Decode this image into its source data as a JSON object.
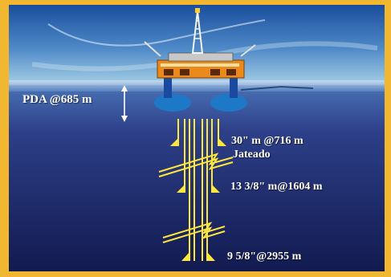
{
  "colors": {
    "frame": "#f2b731",
    "sky_top": "#1a4e9c",
    "sky_bottom": "#8fc1e0",
    "sea_top": "#3b63a9",
    "sea_bottom": "#121a50",
    "casing": "#ffe63a",
    "rig": "#e98a1b",
    "pontoon": "#1e78c8",
    "label": "#ffffff"
  },
  "labels": {
    "water_depth": "PDA @685 m",
    "casing_30": "30\" m @716 m",
    "casing_30_method": "Jateado",
    "casing_13": "13 3/8\" m@1604 m",
    "casing_9": "9 5/8\"@2955 m"
  },
  "icons": {
    "rig": "semi-submersible-rig-icon",
    "depth_arrow": "double-arrow-icon",
    "break_marks": "break-symbol-icon",
    "casing_shoes": "casing-shoe-icon"
  }
}
